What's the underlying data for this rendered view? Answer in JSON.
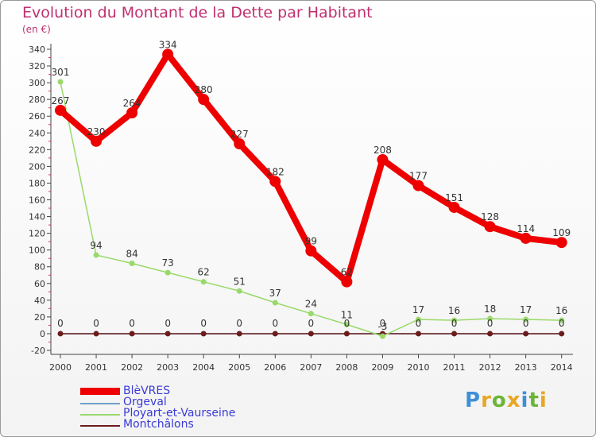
{
  "chart_data": {
    "type": "line",
    "title": "Evolution du Montant de la Dette par Habitant",
    "subtitle": "(en €)",
    "xlabel": "",
    "ylabel": "",
    "ylim": [
      -20,
      340
    ],
    "yticks": [
      -20,
      0,
      20,
      40,
      60,
      80,
      100,
      120,
      140,
      160,
      180,
      200,
      220,
      240,
      260,
      280,
      300,
      320,
      340
    ],
    "categories": [
      "2000",
      "2001",
      "2002",
      "2003",
      "2004",
      "2005",
      "2006",
      "2007",
      "2008",
      "2009",
      "2010",
      "2011",
      "2012",
      "2013",
      "2014"
    ],
    "series": [
      {
        "name": "BlèVRES",
        "color": "#ee0000",
        "values": [
          267,
          230,
          264,
          334,
          280,
          227,
          182,
          99,
          62,
          208,
          177,
          151,
          128,
          114,
          109
        ]
      },
      {
        "name": "Orgeval",
        "color": "#6fa0c8",
        "values": [
          0,
          0,
          0,
          0,
          0,
          0,
          0,
          0,
          0,
          0,
          0,
          0,
          0,
          0,
          0
        ]
      },
      {
        "name": "Ployart-et-Vaurseine",
        "color": "#99d96a",
        "values": [
          301,
          94,
          84,
          73,
          62,
          51,
          37,
          24,
          11,
          -3,
          17,
          16,
          18,
          17,
          16
        ]
      },
      {
        "name": "Montchâlons",
        "color": "#6b1c1c",
        "values": [
          0,
          0,
          0,
          0,
          0,
          0,
          0,
          0,
          0,
          0,
          0,
          0,
          0,
          0,
          0
        ]
      }
    ],
    "point_labels": [
      {
        "series": "BlèVRES",
        "labels": [
          "267",
          "230",
          "264",
          "334",
          "280",
          "227",
          "182",
          "99",
          "62",
          "208",
          "177",
          "151",
          "128",
          "114",
          "109"
        ]
      },
      {
        "series": "Ployart-et-Vaurseine",
        "labels": [
          "301",
          "94",
          "84",
          "73",
          "62",
          "51",
          "37",
          "24",
          "11",
          "-3",
          "17",
          "16",
          "18",
          "17",
          "16"
        ]
      },
      {
        "series": "Montchâlons",
        "labels": [
          "0",
          "0",
          "0",
          "0",
          "0",
          "0",
          "0",
          "0",
          "0",
          "0",
          "0",
          "0",
          "0",
          "0",
          "0"
        ]
      }
    ],
    "grid": false,
    "legend": "bottom-left"
  },
  "logo": {
    "p": "P",
    "r": "r",
    "o": "o",
    "x": "x",
    "i1": "i",
    "t": "t",
    "i2": "i"
  }
}
